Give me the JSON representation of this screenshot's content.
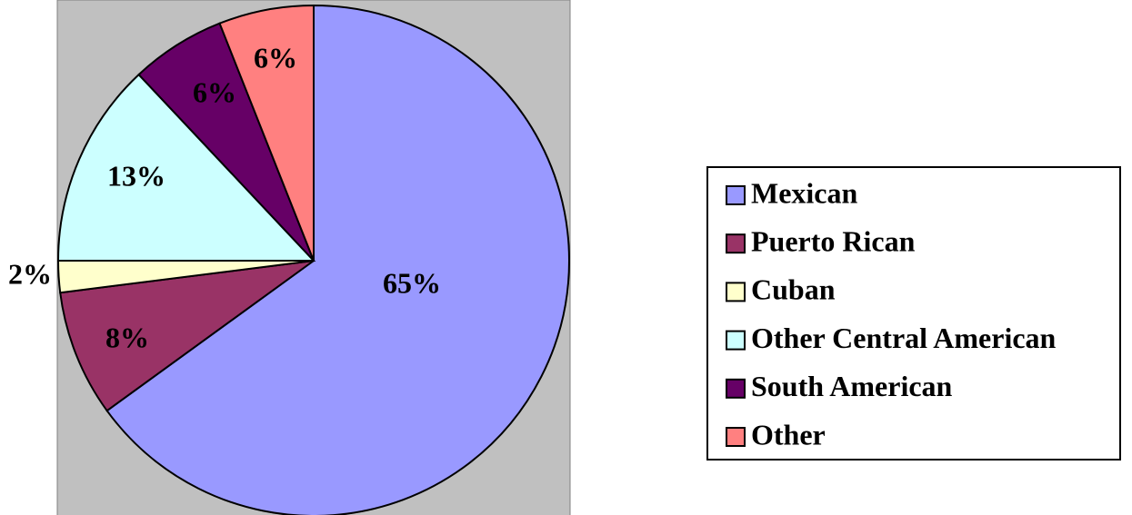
{
  "chart_data": {
    "type": "pie",
    "categories": [
      "Mexican",
      "Puerto Rican",
      "Cuban",
      "Other Central American",
      "South American",
      "Other"
    ],
    "values": [
      65,
      8,
      2,
      13,
      6,
      6
    ],
    "value_labels": [
      "65%",
      "8%",
      "2%",
      "13%",
      "6%",
      "6%"
    ],
    "colors": [
      "#9999ff",
      "#993366",
      "#ffffcc",
      "#ccffff",
      "#660066",
      "#ff8080"
    ],
    "legend": "right"
  }
}
